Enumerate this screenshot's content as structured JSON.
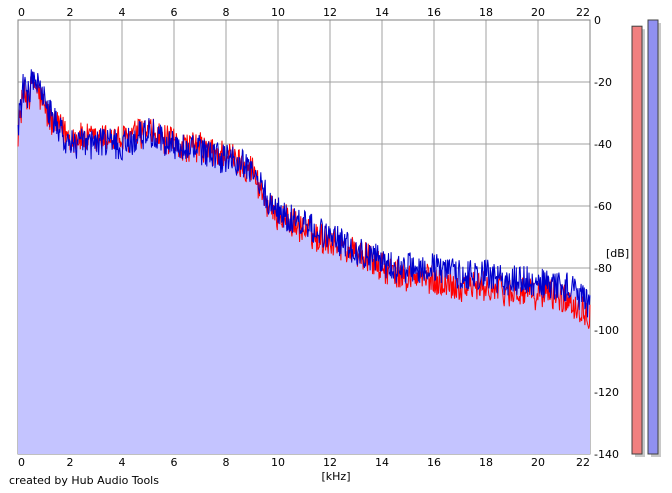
{
  "footer": {
    "credit": "created by Hub Audio Tools"
  },
  "chart_data": {
    "type": "line",
    "title": "",
    "xlabel": "[kHz]",
    "ylabel": "[dB]",
    "xlim": [
      0,
      22
    ],
    "ylim": [
      -140,
      0
    ],
    "x_ticks": [
      0,
      2,
      4,
      6,
      8,
      10,
      12,
      14,
      16,
      18,
      20,
      22
    ],
    "y_ticks": [
      0,
      -20,
      -40,
      -60,
      -80,
      -100,
      -120,
      -140
    ],
    "grid": true,
    "colors": {
      "fill": "#c4c4ff",
      "left_channel": "#ff0000",
      "right_channel": "#0000cc",
      "meter_left": "#f08080",
      "meter_right": "#9090f0",
      "grid": "#a0a0a0"
    },
    "series": [
      {
        "x": [
          0,
          0.2,
          0.4,
          0.6,
          0.8,
          1,
          1.2,
          1.4,
          1.6,
          1.8,
          2,
          2.5,
          3,
          3.5,
          4,
          4.5,
          5,
          5.5,
          6,
          6.5,
          7,
          7.5,
          8,
          8.5,
          9,
          9.2,
          9.5,
          9.8,
          10,
          10.5,
          11,
          11.5,
          12,
          12.5,
          13,
          13.5,
          14,
          14.5,
          15,
          15.5,
          16,
          16.5,
          17,
          17.5,
          18,
          18.5,
          19,
          19.5,
          20,
          20.5,
          21,
          21.5,
          22
        ],
        "values": [
          -36,
          -24,
          -25,
          -20,
          -24,
          -28,
          -32,
          -34,
          -35,
          -36,
          -38,
          -38,
          -39,
          -38,
          -39,
          -37,
          -36,
          -38,
          -40,
          -41,
          -41,
          -43,
          -43,
          -46,
          -48,
          -52,
          -58,
          -62,
          -63,
          -65,
          -68,
          -70,
          -71,
          -73,
          -75,
          -77,
          -80,
          -82,
          -83,
          -83,
          -84,
          -85,
          -86,
          -86,
          -86,
          -87,
          -88,
          -88,
          -89,
          -88,
          -90,
          -92,
          -95
        ]
      },
      {
        "x": [
          0,
          0.2,
          0.4,
          0.6,
          0.8,
          1,
          1.2,
          1.4,
          1.6,
          1.8,
          2,
          2.5,
          3,
          3.5,
          4,
          4.5,
          5,
          5.5,
          6,
          6.5,
          7,
          7.5,
          8,
          8.5,
          9,
          9.2,
          9.5,
          9.8,
          10,
          10.5,
          11,
          11.5,
          12,
          12.5,
          13,
          13.5,
          14,
          14.5,
          15,
          15.5,
          16,
          16.5,
          17,
          17.5,
          18,
          18.5,
          19,
          19.5,
          20,
          20.5,
          21,
          21.5,
          22
        ],
        "values": [
          -34,
          -22,
          -24,
          -18,
          -22,
          -26,
          -30,
          -33,
          -36,
          -38,
          -40,
          -40,
          -40,
          -39,
          -41,
          -38,
          -36,
          -38,
          -41,
          -42,
          -42,
          -44,
          -45,
          -46,
          -48,
          -52,
          -56,
          -60,
          -62,
          -64,
          -66,
          -68,
          -70,
          -72,
          -74,
          -76,
          -78,
          -80,
          -80,
          -80,
          -80,
          -81,
          -82,
          -82,
          -82,
          -84,
          -84,
          -84,
          -85,
          -85,
          -86,
          -88,
          -92
        ]
      }
    ],
    "meters": {
      "left_db": -2,
      "right_db": 0,
      "range": [
        -140,
        0
      ]
    }
  }
}
